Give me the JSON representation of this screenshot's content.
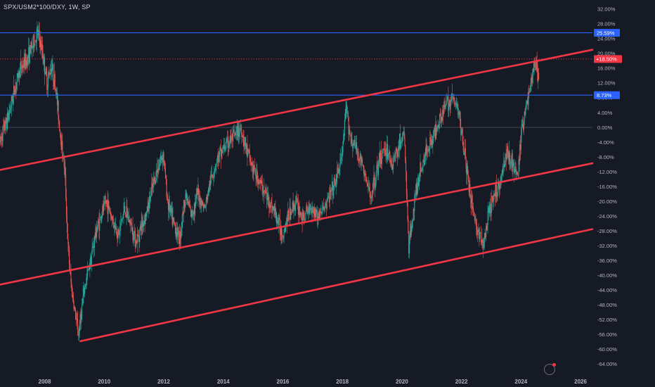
{
  "header": {
    "title": "SPX/USM2*100/DXY, 1W, SP"
  },
  "colors": {
    "background": "#161a25",
    "up": "#26a69a",
    "down": "#ef5350",
    "channel": "#f23645",
    "level": "#2962ff",
    "current": "#f23645"
  },
  "chart_data": {
    "type": "candlestick",
    "xlabel": "",
    "ylabel": "",
    "x_ticks": [
      "2008",
      "2010",
      "2012",
      "2014",
      "2016",
      "2018",
      "2020",
      "2022",
      "2024",
      "2026"
    ],
    "y_ticks": [
      "32.00%",
      "28.00%",
      "24.00%",
      "20.00%",
      "16.00%",
      "12.00%",
      "8.00%",
      "4.00%",
      "0.00%",
      "-4.00%",
      "-8.00%",
      "-12.00%",
      "-16.00%",
      "-20.00%",
      "-24.00%",
      "-28.00%",
      "-32.00%",
      "-36.00%",
      "-40.00%",
      "-44.00%",
      "-48.00%",
      "-52.00%",
      "-56.00%",
      "-60.00%",
      "-64.00%"
    ],
    "xlim": [
      2006.5,
      2026.4
    ],
    "ylim": [
      -66,
      33.5
    ],
    "horizontal_levels": [
      {
        "label": "25.59%",
        "value": 25.59
      },
      {
        "label": "8.73%",
        "value": 8.73
      }
    ],
    "zero_line": 0,
    "current_value": {
      "label": "+18.50%",
      "value": 18.5
    },
    "channel_lines": [
      {
        "points": [
          [
            2006.5,
            -11.5
          ],
          [
            2026.4,
            21.0
          ]
        ]
      },
      {
        "points": [
          [
            2006.5,
            -42.5
          ],
          [
            2026.4,
            -9.7
          ]
        ]
      },
      {
        "points": [
          [
            2009.2,
            -57.8
          ],
          [
            2026.4,
            -27.5
          ]
        ]
      }
    ],
    "price_path": [
      [
        2006.5,
        -4
      ],
      [
        2006.8,
        3
      ],
      [
        2007.0,
        10
      ],
      [
        2007.2,
        16
      ],
      [
        2007.4,
        18
      ],
      [
        2007.6,
        22
      ],
      [
        2007.8,
        25.5
      ],
      [
        2007.95,
        20
      ],
      [
        2008.1,
        12
      ],
      [
        2008.25,
        17
      ],
      [
        2008.4,
        10
      ],
      [
        2008.55,
        -2
      ],
      [
        2008.7,
        -12
      ],
      [
        2008.8,
        -32
      ],
      [
        2008.9,
        -42
      ],
      [
        2009.0,
        -48
      ],
      [
        2009.15,
        -56
      ],
      [
        2009.35,
        -44
      ],
      [
        2009.55,
        -36
      ],
      [
        2009.75,
        -28
      ],
      [
        2009.95,
        -23
      ],
      [
        2010.1,
        -20
      ],
      [
        2010.3,
        -25
      ],
      [
        2010.5,
        -29
      ],
      [
        2010.7,
        -22
      ],
      [
        2010.9,
        -26
      ],
      [
        2011.1,
        -31
      ],
      [
        2011.25,
        -27
      ],
      [
        2011.45,
        -23
      ],
      [
        2011.65,
        -16
      ],
      [
        2011.85,
        -10
      ],
      [
        2012.0,
        -7
      ],
      [
        2012.15,
        -20
      ],
      [
        2012.35,
        -26
      ],
      [
        2012.55,
        -30
      ],
      [
        2012.75,
        -18
      ],
      [
        2012.95,
        -24
      ],
      [
        2013.15,
        -18
      ],
      [
        2013.4,
        -22
      ],
      [
        2013.6,
        -14
      ],
      [
        2013.8,
        -9
      ],
      [
        2014.0,
        -6
      ],
      [
        2014.2,
        -4
      ],
      [
        2014.45,
        -2
      ],
      [
        2014.6,
        0
      ],
      [
        2014.8,
        -6
      ],
      [
        2015.0,
        -11
      ],
      [
        2015.25,
        -15
      ],
      [
        2015.5,
        -19
      ],
      [
        2015.75,
        -23
      ],
      [
        2016.0,
        -29
      ],
      [
        2016.2,
        -24
      ],
      [
        2016.45,
        -20
      ],
      [
        2016.7,
        -25
      ],
      [
        2016.95,
        -21
      ],
      [
        2017.2,
        -24
      ],
      [
        2017.45,
        -21
      ],
      [
        2017.75,
        -16
      ],
      [
        2018.0,
        -8
      ],
      [
        2018.15,
        5
      ],
      [
        2018.3,
        -3
      ],
      [
        2018.5,
        -6
      ],
      [
        2018.75,
        -12
      ],
      [
        2018.95,
        -19
      ],
      [
        2019.2,
        -11
      ],
      [
        2019.45,
        -5
      ],
      [
        2019.7,
        -10
      ],
      [
        2019.95,
        -4
      ],
      [
        2020.1,
        -2
      ],
      [
        2020.25,
        -33
      ],
      [
        2020.4,
        -22
      ],
      [
        2020.6,
        -13
      ],
      [
        2020.85,
        -6
      ],
      [
        2021.1,
        -2
      ],
      [
        2021.3,
        3
      ],
      [
        2021.5,
        6
      ],
      [
        2021.7,
        8
      ],
      [
        2021.9,
        5
      ],
      [
        2022.05,
        -2
      ],
      [
        2022.2,
        -12
      ],
      [
        2022.4,
        -22
      ],
      [
        2022.55,
        -28
      ],
      [
        2022.75,
        -32
      ],
      [
        2022.95,
        -23
      ],
      [
        2023.15,
        -18
      ],
      [
        2023.35,
        -14
      ],
      [
        2023.55,
        -6
      ],
      [
        2023.75,
        -10
      ],
      [
        2023.9,
        -14
      ],
      [
        2024.05,
        0
      ],
      [
        2024.2,
        6
      ],
      [
        2024.35,
        12
      ],
      [
        2024.5,
        18
      ],
      [
        2024.6,
        13.5
      ]
    ]
  }
}
